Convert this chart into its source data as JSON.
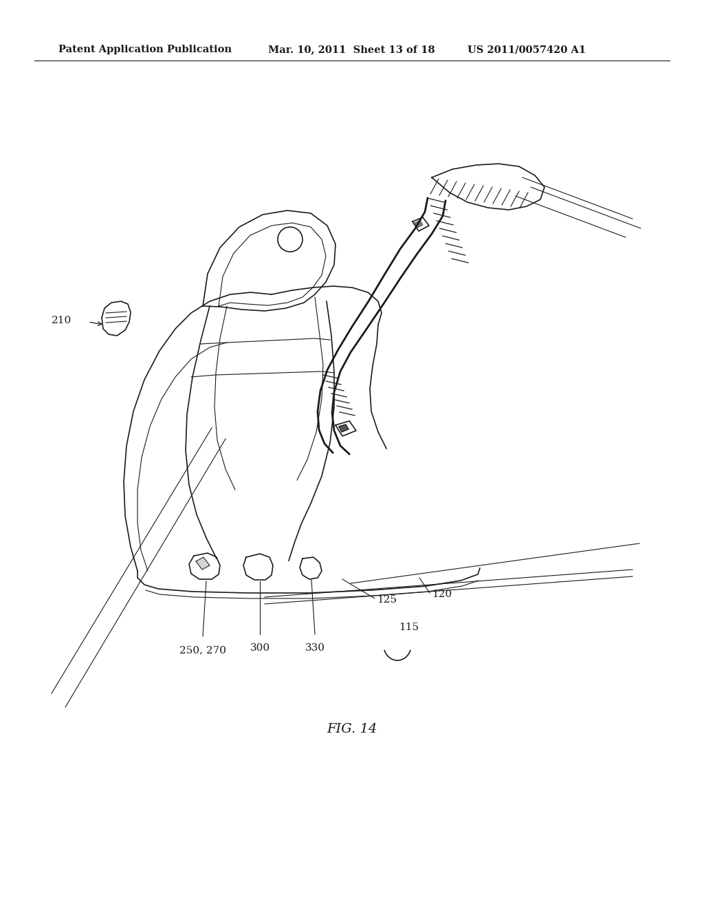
{
  "title_left": "Patent Application Publication",
  "title_mid": "Mar. 10, 2011  Sheet 13 of 18",
  "title_right": "US 2011/0057420 A1",
  "fig_label": "FIG. 14",
  "bg_color": "#ffffff",
  "line_color": "#1a1a1a",
  "label_210": "210",
  "label_250_270": "250, 270",
  "label_300": "300",
  "label_330": "330",
  "label_125": "125",
  "label_120": "120",
  "label_115": "115",
  "header_fontsize": 10.5,
  "label_fontsize": 11,
  "fig_label_fontsize": 14
}
